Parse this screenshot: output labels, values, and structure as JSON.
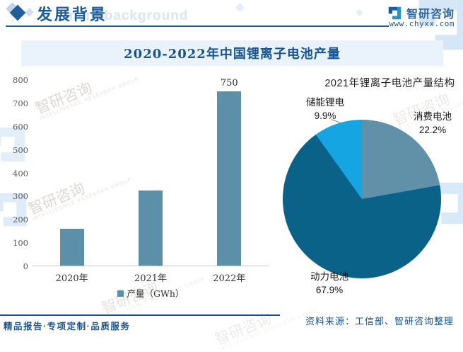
{
  "header": {
    "section_title": "发展背景",
    "section_title_en_watermark": "ment background",
    "brand_name": "智研咨询",
    "brand_site": "www.chyxx.com"
  },
  "banner_title": "2020-2022年中国锂离子电池产量",
  "chart_data": [
    {
      "type": "bar",
      "title": "2020-2022年中国锂离子电池产量",
      "categories": [
        "2020年",
        "2021年",
        "2022年"
      ],
      "values": [
        160,
        324,
        750
      ],
      "shown_value_labels": [
        "",
        "",
        "750"
      ],
      "xlabel": "",
      "ylabel": "",
      "ylim": [
        0,
        800
      ],
      "ytick_step": 100,
      "grid": false,
      "legend": [
        "产量（GWh）"
      ],
      "legend_position": "bottom",
      "bar_color": "#5C90A9"
    },
    {
      "type": "pie",
      "title": "2021年锂离子电池产量结构",
      "direction": "clockwise",
      "start_angle_deg": 0,
      "slices": [
        {
          "label": "消费电池",
          "value": 22.2,
          "display": "22.2%",
          "color": "#6191A9"
        },
        {
          "label": "动力电池",
          "value": 67.9,
          "display": "67.9%",
          "color": "#0B6288"
        },
        {
          "label": "储能锂电",
          "value": 9.9,
          "display": "9.9%",
          "color": "#16A5E3"
        }
      ]
    }
  ],
  "footer": {
    "tagline": "精品报告·专项定制·品质服务",
    "source": "资料来源：工信部、智研咨询整理"
  },
  "watermark": {
    "cn": "智研咨询",
    "en": "INTELLIGENCE RESEARCH GROUP"
  },
  "colors": {
    "header_blue": "#1B5C9C",
    "banner_bg": "#EAF3FC",
    "axis_text": "#595959",
    "bar": "#5C90A9",
    "pie_consumer": "#6191A9",
    "pie_power": "#0B6288",
    "pie_storage": "#16A5E3"
  }
}
